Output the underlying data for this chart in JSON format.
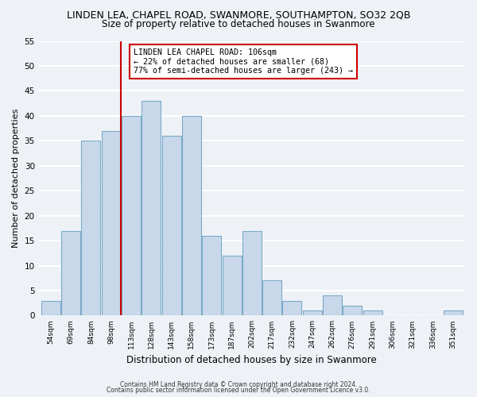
{
  "title": "LINDEN LEA, CHAPEL ROAD, SWANMORE, SOUTHAMPTON, SO32 2QB",
  "subtitle": "Size of property relative to detached houses in Swanmore",
  "xlabel": "Distribution of detached houses by size in Swanmore",
  "ylabel": "Number of detached properties",
  "bar_labels": [
    "54sqm",
    "69sqm",
    "84sqm",
    "98sqm",
    "113sqm",
    "128sqm",
    "143sqm",
    "158sqm",
    "173sqm",
    "187sqm",
    "202sqm",
    "217sqm",
    "232sqm",
    "247sqm",
    "262sqm",
    "276sqm",
    "291sqm",
    "306sqm",
    "321sqm",
    "336sqm",
    "351sqm"
  ],
  "bar_values": [
    3,
    17,
    35,
    37,
    40,
    43,
    36,
    40,
    16,
    12,
    17,
    7,
    3,
    1,
    4,
    2,
    1,
    0,
    0,
    0,
    1
  ],
  "bar_color": "#c8d8ea",
  "bar_edge_color": "#7aaac8",
  "vline_bar_index": 3,
  "annotation_text_line1": "LINDEN LEA CHAPEL ROAD: 106sqm",
  "annotation_text_line2": "← 22% of detached houses are smaller (68)",
  "annotation_text_line3": "77% of semi-detached houses are larger (243) →",
  "annotation_box_color": "#ffffff",
  "annotation_box_edge": "#cc0000",
  "vline_color": "#cc0000",
  "ylim": [
    0,
    55
  ],
  "yticks": [
    0,
    5,
    10,
    15,
    20,
    25,
    30,
    35,
    40,
    45,
    50,
    55
  ],
  "footer_line1": "Contains HM Land Registry data © Crown copyright and database right 2024.",
  "footer_line2": "Contains public sector information licensed under the Open Government Licence v3.0.",
  "bg_color": "#eef2f7",
  "grid_color": "#ffffff",
  "title_fontsize": 9,
  "subtitle_fontsize": 8.5
}
